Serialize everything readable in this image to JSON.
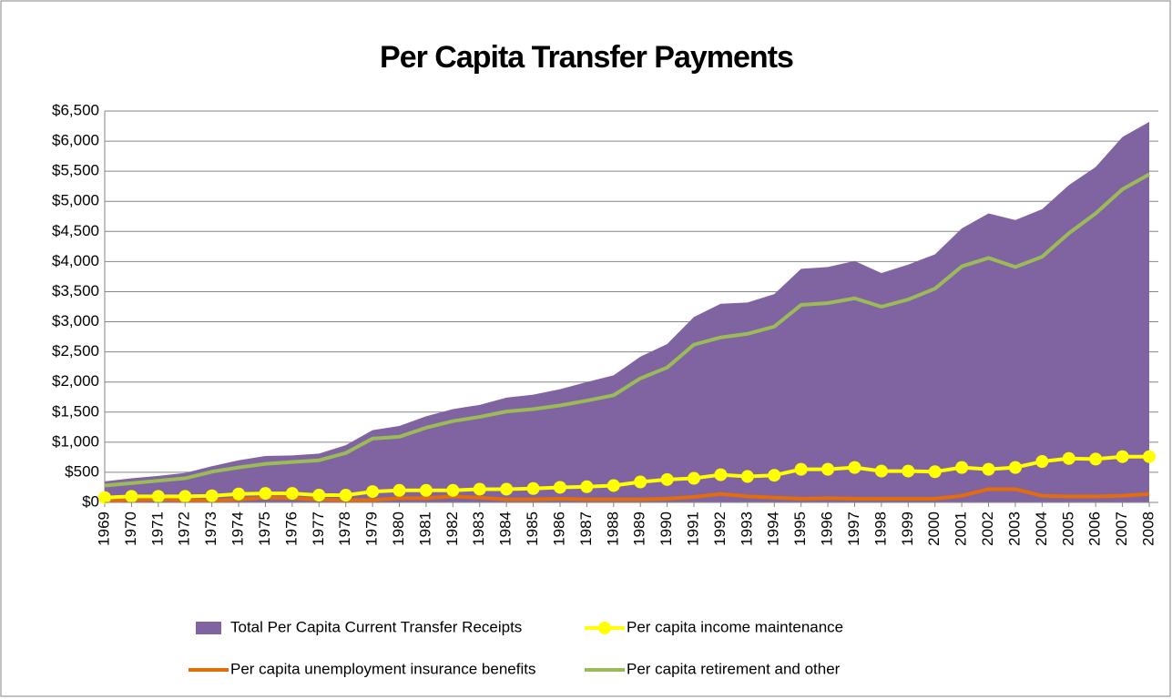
{
  "chart_data": {
    "type": "area",
    "title": "Per Capita Transfer Payments",
    "categories": [
      "1969",
      "1970",
      "1971",
      "1972",
      "1973",
      "1974",
      "1975",
      "1976",
      "1977",
      "1978",
      "1979",
      "1980",
      "1981",
      "1982",
      "1983",
      "1984",
      "1985",
      "1986",
      "1987",
      "1988",
      "1989",
      "1990",
      "1991",
      "1992",
      "1993",
      "1994",
      "1995",
      "1996",
      "1997",
      "1998",
      "1999",
      "2000",
      "2001",
      "2002",
      "2003",
      "2004",
      "2005",
      "2006",
      "2007",
      "2008"
    ],
    "series": [
      {
        "name": "Total Per Capita Current Transfer Receipts",
        "kind": "area",
        "color": "#8064a2",
        "values": [
          350,
          400,
          440,
          490,
          600,
          700,
          770,
          780,
          810,
          950,
          1200,
          1270,
          1430,
          1550,
          1620,
          1740,
          1790,
          1880,
          2000,
          2110,
          2420,
          2630,
          3080,
          3300,
          3320,
          3460,
          3880,
          3910,
          4010,
          3810,
          3950,
          4120,
          4550,
          4800,
          4690,
          4870,
          5270,
          5570,
          6070,
          6320
        ]
      },
      {
        "name": "Per capita income maintenance",
        "kind": "line-marker",
        "color": "#ffff00",
        "values": [
          80,
          100,
          100,
          100,
          110,
          140,
          150,
          150,
          120,
          120,
          180,
          200,
          200,
          200,
          220,
          220,
          230,
          250,
          260,
          280,
          340,
          380,
          400,
          460,
          430,
          450,
          550,
          550,
          580,
          520,
          520,
          510,
          580,
          550,
          580,
          680,
          730,
          720,
          760,
          760
        ]
      },
      {
        "name": "Per capita unemployment insurance benefits",
        "kind": "line",
        "color": "#e46c0a",
        "values": [
          20,
          40,
          50,
          40,
          30,
          50,
          80,
          70,
          50,
          40,
          40,
          70,
          70,
          100,
          80,
          50,
          50,
          60,
          50,
          50,
          50,
          60,
          90,
          140,
          100,
          80,
          60,
          70,
          60,
          60,
          60,
          60,
          110,
          220,
          220,
          110,
          100,
          100,
          110,
          140
        ]
      },
      {
        "name": "Per capita retirement and other",
        "kind": "line",
        "color": "#9bbb59",
        "values": [
          280,
          320,
          360,
          400,
          510,
          580,
          640,
          670,
          700,
          820,
          1060,
          1090,
          1240,
          1350,
          1420,
          1510,
          1550,
          1610,
          1690,
          1780,
          2060,
          2240,
          2620,
          2740,
          2800,
          2920,
          3280,
          3310,
          3390,
          3250,
          3370,
          3550,
          3920,
          4060,
          3910,
          4080,
          4470,
          4800,
          5200,
          5450
        ]
      }
    ],
    "ylim": [
      0,
      6500
    ],
    "yticks": [
      {
        "value": 0,
        "label": "$0"
      },
      {
        "value": 500,
        "label": "$500"
      },
      {
        "value": 1000,
        "label": "$1,000"
      },
      {
        "value": 1500,
        "label": "$1,500"
      },
      {
        "value": 2000,
        "label": "$2,000"
      },
      {
        "value": 2500,
        "label": "$2,500"
      },
      {
        "value": 3000,
        "label": "$3,000"
      },
      {
        "value": 3500,
        "label": "$3,500"
      },
      {
        "value": 4000,
        "label": "$4,000"
      },
      {
        "value": 4500,
        "label": "$4,500"
      },
      {
        "value": 5000,
        "label": "$5,000"
      },
      {
        "value": 5500,
        "label": "$5,500"
      },
      {
        "value": 6000,
        "label": "$6,000"
      },
      {
        "value": 6500,
        "label": "$6,500"
      }
    ],
    "grid": true,
    "legend": "bottom"
  }
}
